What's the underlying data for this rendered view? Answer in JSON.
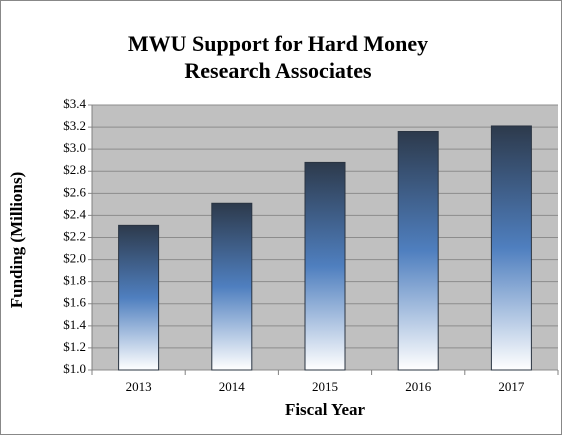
{
  "chart_data": {
    "type": "bar",
    "title": "MWU Support for Hard Money Research Associates",
    "x_label": "Fiscal Year",
    "y_label": "Funding (Millions)",
    "categories": [
      "2013",
      "2014",
      "2015",
      "2016",
      "2017"
    ],
    "values": [
      2.31,
      2.51,
      2.88,
      3.16,
      3.21
    ],
    "ylim": [
      1.0,
      3.4
    ],
    "yticks": [
      {
        "value": 1.0,
        "label": "$1.0"
      },
      {
        "value": 1.2,
        "label": "$1.2"
      },
      {
        "value": 1.4,
        "label": "$1.4"
      },
      {
        "value": 1.6,
        "label": "$1.6"
      },
      {
        "value": 1.8,
        "label": "$1.8"
      },
      {
        "value": 2.0,
        "label": "$2.0"
      },
      {
        "value": 2.2,
        "label": "$2.2"
      },
      {
        "value": 2.4,
        "label": "$2.4"
      },
      {
        "value": 2.6,
        "label": "$2.6"
      },
      {
        "value": 2.8,
        "label": "$2.8"
      },
      {
        "value": 3.0,
        "label": "$3.0"
      },
      {
        "value": 3.2,
        "label": "$3.2"
      },
      {
        "value": 3.4,
        "label": "$3.4"
      }
    ],
    "grid": true
  }
}
